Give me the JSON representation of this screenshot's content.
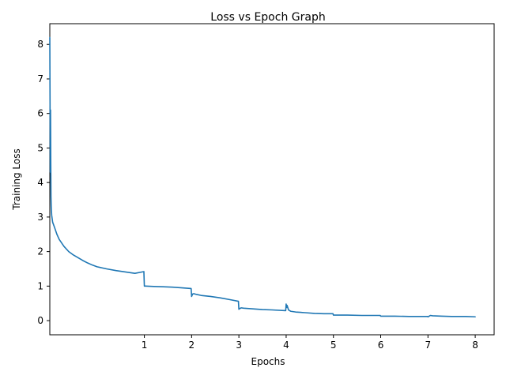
{
  "chart_data": {
    "type": "line",
    "title": "Loss vs Epoch Graph",
    "xlabel": "Epochs",
    "ylabel": "Training Loss",
    "xlim": [
      -1.0,
      8.4
    ],
    "ylim": [
      -0.41,
      8.6
    ],
    "xticks": [
      1,
      2,
      3,
      4,
      5,
      6,
      7,
      8
    ],
    "xtick_labels": [
      "1",
      "2",
      "3",
      "4",
      "5",
      "6",
      "7",
      "8"
    ],
    "yticks": [
      0,
      1,
      2,
      3,
      4,
      5,
      6,
      7,
      8
    ],
    "ytick_labels": [
      "0",
      "1",
      "2",
      "3",
      "4",
      "5",
      "6",
      "7",
      "8"
    ],
    "grid": false,
    "series": [
      {
        "color": "#1f77b4",
        "x": [
          -1.0,
          -0.99,
          -0.985,
          -0.98,
          -0.975,
          -0.97,
          -0.96,
          -0.94,
          -0.9,
          -0.85,
          -0.8,
          -0.7,
          -0.6,
          -0.5,
          -0.4,
          -0.3,
          -0.2,
          -0.1,
          0.0,
          0.2,
          0.4,
          0.6,
          0.8,
          0.99,
          1.0,
          1.02,
          1.2,
          1.4,
          1.6,
          1.8,
          1.99,
          2.0,
          2.02,
          2.05,
          2.1,
          2.2,
          2.4,
          2.6,
          2.8,
          2.99,
          3.0,
          3.02,
          3.05,
          3.1,
          3.3,
          3.5,
          3.7,
          3.99,
          4.0,
          4.01,
          4.02,
          4.05,
          4.1,
          4.2,
          4.4,
          4.6,
          4.8,
          4.99,
          5.0,
          5.3,
          5.6,
          5.99,
          6.0,
          6.3,
          6.6,
          6.99,
          7.0,
          7.05,
          7.1,
          7.3,
          7.5,
          7.8,
          8.0
        ],
        "y": [
          8.2,
          4.3,
          6.1,
          4.7,
          3.6,
          3.3,
          3.05,
          2.85,
          2.7,
          2.5,
          2.35,
          2.15,
          2.0,
          1.9,
          1.82,
          1.74,
          1.67,
          1.61,
          1.56,
          1.5,
          1.45,
          1.41,
          1.37,
          1.42,
          1.0,
          1.0,
          0.99,
          0.98,
          0.97,
          0.95,
          0.93,
          0.7,
          0.77,
          0.78,
          0.76,
          0.73,
          0.7,
          0.66,
          0.61,
          0.56,
          0.33,
          0.35,
          0.37,
          0.36,
          0.34,
          0.32,
          0.31,
          0.29,
          0.48,
          0.38,
          0.44,
          0.31,
          0.27,
          0.25,
          0.23,
          0.21,
          0.2,
          0.2,
          0.16,
          0.16,
          0.15,
          0.15,
          0.13,
          0.13,
          0.12,
          0.12,
          0.11,
          0.15,
          0.14,
          0.13,
          0.12,
          0.12,
          0.11
        ]
      }
    ]
  }
}
